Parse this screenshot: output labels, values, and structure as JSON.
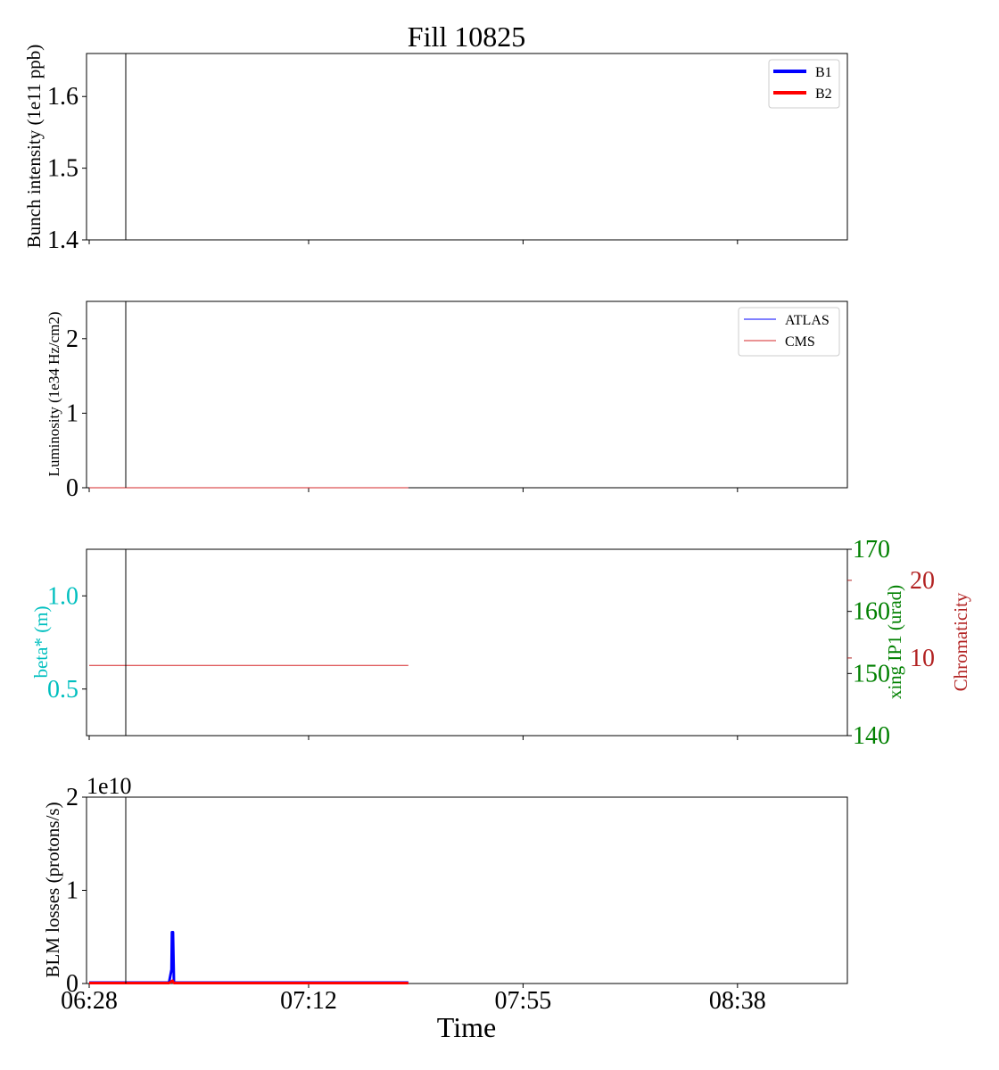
{
  "figure": {
    "title": "Fill 10825",
    "xlabel": "Time",
    "x_ticks": [
      "06:28",
      "07:12",
      "07:55",
      "08:38"
    ]
  },
  "chart_data": [
    {
      "type": "line",
      "id": "intensity",
      "ylabel": "Bunch intensity (1e11 ppb)",
      "ylim": [
        1.4,
        1.66
      ],
      "y_ticks": [
        "1.4",
        "1.5",
        "1.6"
      ],
      "legend_position": "top-right",
      "series": [
        {
          "name": "B1",
          "color": "#0000ff",
          "points": []
        },
        {
          "name": "B2",
          "color": "#ff0000",
          "points": []
        }
      ],
      "vline_x": "06:35"
    },
    {
      "type": "line",
      "id": "luminosity",
      "ylabel": "Luminosity (1e34 Hz/cm2)",
      "ylim": [
        0,
        2.5
      ],
      "y_ticks": [
        "0",
        "1",
        "2"
      ],
      "legend_position": "top-right",
      "series": [
        {
          "name": "ATLAS",
          "color": "#0000ff",
          "points": [
            [
              "06:28",
              0
            ],
            [
              "07:32",
              0
            ]
          ]
        },
        {
          "name": "CMS",
          "color": "#d62728",
          "points": [
            [
              "06:28",
              0
            ],
            [
              "07:32",
              0
            ]
          ]
        }
      ],
      "vline_x": "06:35"
    },
    {
      "type": "line",
      "id": "optics",
      "ylabel": "beta* (m)",
      "ylabel_color": "#00bfbf",
      "ylim": [
        0.25,
        1.25
      ],
      "y_ticks": [
        "0.5",
        "1.0"
      ],
      "y2label": "xing IP1 (urad)",
      "y2label_color": "#008000",
      "y2lim": [
        140,
        170
      ],
      "y2_ticks": [
        "140",
        "150",
        "160",
        "170"
      ],
      "y3label": "Chromaticity",
      "y3label_color": "#b22222",
      "y3lim": [
        0,
        24
      ],
      "y3_ticks": [
        "10",
        "20"
      ],
      "series": [
        {
          "color": "#d62728",
          "axis": "y2",
          "points": [
            [
              "06:28",
              151.3
            ],
            [
              "07:32",
              151.3
            ]
          ]
        }
      ],
      "vline_x": "06:35"
    },
    {
      "type": "line",
      "id": "blm",
      "ylabel": "BLM losses (protons/s)",
      "ylim": [
        0,
        2.0
      ],
      "y_ticks": [
        "0",
        "1",
        "2"
      ],
      "y_offset_text": "1e10",
      "series": [
        {
          "color": "#0000ff",
          "points": [
            [
              "06:28",
              0.01
            ],
            [
              "06:44",
              0.01
            ],
            [
              "06:44.5",
              0.15
            ],
            [
              "06:44.6",
              0.55
            ],
            [
              "06:44.8",
              0.55
            ],
            [
              "06:45",
              0.01
            ],
            [
              "07:32",
              0.01
            ]
          ]
        },
        {
          "color": "#ff0000",
          "points": [
            [
              "06:28",
              0.005
            ],
            [
              "06:44",
              0.005
            ],
            [
              "06:44.7",
              0.03
            ],
            [
              "06:45",
              0.005
            ],
            [
              "07:32",
              0.005
            ]
          ]
        }
      ],
      "vline_x": "06:35"
    }
  ]
}
